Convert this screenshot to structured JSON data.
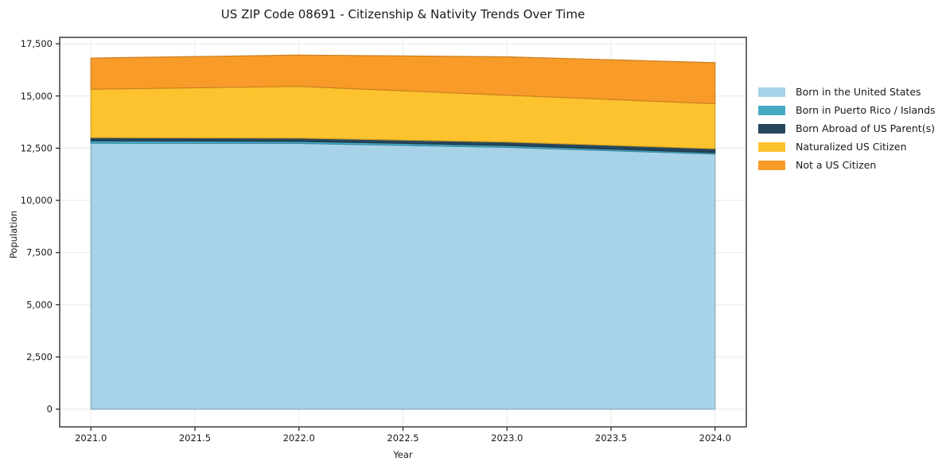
{
  "title": "US ZIP Code 08691 - Citizenship & Nativity Trends Over Time",
  "chart_data": {
    "type": "area",
    "stacked": true,
    "title": "US ZIP Code 08691 - Citizenship & Nativity Trends Over Time",
    "xlabel": "Year",
    "ylabel": "Population",
    "x": [
      2021,
      2022,
      2023,
      2024
    ],
    "series": [
      {
        "name": "Born in the United States",
        "color": "#a8d2e8",
        "values": [
          12740,
          12730,
          12540,
          12220
        ]
      },
      {
        "name": "Born in Puerto Rico / Islands",
        "color": "#46aac6",
        "values": [
          115,
          100,
          90,
          65
        ]
      },
      {
        "name": "Born Abroad of US Parent(s)",
        "color": "#26465c",
        "values": [
          150,
          150,
          165,
          190
        ]
      },
      {
        "name": "Naturalized US Citizen",
        "color": "#fdc32e",
        "values": [
          2320,
          2480,
          2240,
          2155
        ]
      },
      {
        "name": "Not a US Citizen",
        "color": "#f89b28",
        "values": [
          1490,
          1500,
          1840,
          1965
        ]
      }
    ],
    "x_tick_labels": [
      "2021.0",
      "2021.5",
      "2022.0",
      "2022.5",
      "2023.0",
      "2023.5",
      "2024.0"
    ],
    "x_tick_values": [
      2021,
      2021.5,
      2022,
      2022.5,
      2023,
      2023.5,
      2024
    ],
    "y_tick_labels": [
      "0",
      "2,500",
      "5,000",
      "7,500",
      "10,000",
      "12,500",
      "15,000",
      "17,500"
    ],
    "y_tick_values": [
      0,
      2500,
      5000,
      7500,
      10000,
      12500,
      15000,
      17500
    ],
    "xlim": [
      2020.85,
      2024.15
    ],
    "ylim": [
      -848,
      17808
    ],
    "grid": true,
    "grid_color": "#e9e9e9",
    "spine_color": "#1f1f1f",
    "background": "#ffffff",
    "legend_position": "right"
  }
}
